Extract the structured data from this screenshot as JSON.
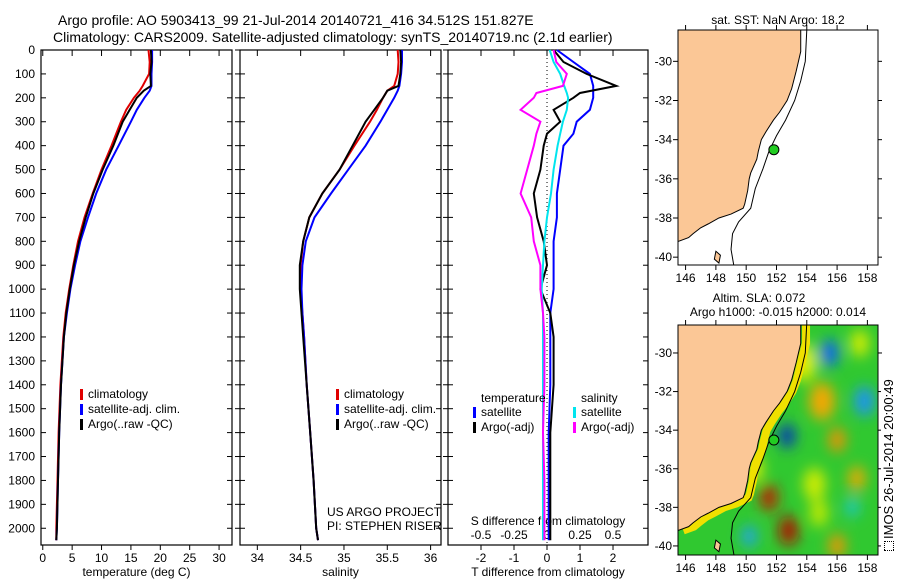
{
  "header": {
    "line1": "Argo profile: AO 5903413_99 21-Jul-2014 20140721_416 34.512S 151.827E",
    "line2": "Climatology: CARS2009. Satellite-adjusted climatology: synTS_20140719.nc (2.1d earlier)"
  },
  "chart_data": [
    {
      "type": "line",
      "id": "temperature",
      "xlabel": "temperature (deg C)",
      "ylabel": "",
      "xlim": [
        -0.3,
        32.2
      ],
      "ylim": [
        0,
        2070
      ],
      "xticks": [
        0,
        5,
        10,
        15,
        20,
        25,
        30
      ],
      "yticks": [
        0,
        100,
        200,
        300,
        400,
        500,
        600,
        700,
        800,
        900,
        1000,
        1100,
        1200,
        1300,
        1400,
        1500,
        1600,
        1700,
        1800,
        1900,
        2000
      ],
      "depth": [
        0,
        50,
        100,
        150,
        170,
        200,
        250,
        300,
        400,
        500,
        600,
        700,
        800,
        900,
        1000,
        1100,
        1200,
        1400,
        1600,
        1800,
        2000,
        2050
      ],
      "legend": [
        "climatology",
        "satellite-adj. clim.",
        "Argo(..raw -QC)"
      ],
      "series": [
        {
          "name": "climatology",
          "color": "#e00000",
          "values": [
            18.0,
            18.2,
            18.1,
            17.0,
            16.5,
            15.5,
            14.2,
            13.3,
            11.7,
            10.0,
            8.5,
            7.1,
            6.0,
            5.2,
            4.5,
            3.9,
            3.5,
            3.0,
            2.7,
            2.5,
            2.3,
            2.3
          ]
        },
        {
          "name": "satellite-adj. clim.",
          "color": "#0000ff",
          "values": [
            18.6,
            18.6,
            18.5,
            18.5,
            18.2,
            17.3,
            16.0,
            15.0,
            12.9,
            10.8,
            9.1,
            7.7,
            6.4,
            5.5,
            4.7,
            4.1,
            3.6,
            3.1,
            2.8,
            2.6,
            2.4,
            2.3
          ]
        },
        {
          "name": "Argo(..raw -QC)",
          "color": "#000000",
          "values": [
            18.4,
            18.5,
            18.3,
            18.4,
            17.2,
            16.0,
            14.8,
            13.6,
            12.0,
            10.2,
            8.6,
            7.3,
            6.2,
            5.3,
            4.6,
            4.0,
            3.6,
            3.1,
            2.8,
            2.6,
            2.4,
            2.3
          ]
        }
      ]
    },
    {
      "type": "line",
      "id": "salinity",
      "xlabel": "salinity",
      "xlim": [
        33.8,
        36.12
      ],
      "ylim": [
        0,
        2070
      ],
      "xticks": [
        34,
        34.5,
        35,
        35.5,
        36
      ],
      "depth": [
        0,
        50,
        100,
        150,
        170,
        200,
        250,
        300,
        400,
        500,
        600,
        700,
        800,
        900,
        1000,
        1100,
        1200,
        1400,
        1600,
        1800,
        2000,
        2050
      ],
      "legend": [
        "climatology",
        "satellite-adj. clim.",
        "Argo(..raw -QC)"
      ],
      "annotations": [
        "US ARGO PROJECT",
        "PI: STEPHEN RISER"
      ],
      "series": [
        {
          "name": "climatology",
          "color": "#e00000",
          "values": [
            35.62,
            35.63,
            35.62,
            35.58,
            35.5,
            35.45,
            35.38,
            35.3,
            35.12,
            34.95,
            34.75,
            34.6,
            34.53,
            34.5,
            34.5,
            34.52,
            34.54,
            34.57,
            34.61,
            34.65,
            34.68,
            34.7
          ]
        },
        {
          "name": "satellite-adj. clim.",
          "color": "#0000ff",
          "values": [
            35.67,
            35.67,
            35.66,
            35.64,
            35.62,
            35.58,
            35.5,
            35.42,
            35.25,
            35.05,
            34.85,
            34.66,
            34.56,
            34.52,
            34.51,
            34.52,
            34.54,
            34.57,
            34.61,
            34.65,
            34.68,
            34.7
          ]
        },
        {
          "name": "Argo(..raw -QC)",
          "color": "#000000",
          "values": [
            35.65,
            35.66,
            35.65,
            35.63,
            35.5,
            35.45,
            35.35,
            35.25,
            35.1,
            34.95,
            34.75,
            34.6,
            34.53,
            34.49,
            34.49,
            34.51,
            34.53,
            34.57,
            34.61,
            34.65,
            34.68,
            34.7
          ]
        }
      ]
    },
    {
      "type": "line",
      "id": "difference",
      "xlabel": "T difference from climatology",
      "x2label": "S difference from climatology",
      "xlim": [
        -3,
        3.06
      ],
      "x2lim": [
        -0.75,
        0.765
      ],
      "ylim": [
        0,
        2070
      ],
      "xticks": [
        -2,
        -1,
        0,
        1,
        2
      ],
      "x2ticks": [
        "-0.5",
        "-0.25",
        "0",
        "0.25",
        "0.5"
      ],
      "x2tickvals": [
        -0.5,
        -0.25,
        0,
        0.25,
        0.5
      ],
      "depth": [
        0,
        50,
        100,
        150,
        180,
        200,
        250,
        300,
        350,
        400,
        500,
        600,
        700,
        800,
        900,
        1000,
        1100,
        1200,
        1400,
        1600,
        1800,
        2000,
        2050
      ],
      "legend_headers": [
        "temperature",
        "salinity"
      ],
      "legend": [
        "satellite",
        "Argo(-adj)",
        "satellite",
        "Argo(-adj)"
      ],
      "series": [
        {
          "name": "T satellite",
          "axis": "T",
          "color": "#0000ff",
          "values": [
            0.3,
            0.8,
            1.3,
            1.4,
            1.4,
            1.4,
            1.3,
            0.9,
            0.8,
            0.5,
            0.4,
            0.3,
            0.3,
            0.2,
            0.2,
            0.2,
            0.1,
            0.1,
            0.1,
            0.05,
            0.05,
            0.05,
            0.05
          ]
        },
        {
          "name": "T Argo(-adj)",
          "axis": "T",
          "color": "#000000",
          "values": [
            0.2,
            0.5,
            1.2,
            2.1,
            1.0,
            0.8,
            0.2,
            0.4,
            0.0,
            -0.1,
            -0.2,
            -0.4,
            -0.3,
            -0.1,
            0.0,
            -0.2,
            0.1,
            0.2,
            0.2,
            0.1,
            0.1,
            0.1,
            0.1
          ]
        },
        {
          "name": "S satellite",
          "axis": "S",
          "color": "#00e5ee",
          "values": [
            0.02,
            0.05,
            0.1,
            0.13,
            0.15,
            0.16,
            0.15,
            0.12,
            0.1,
            0.08,
            0.05,
            0.03,
            0.0,
            -0.02,
            -0.03,
            -0.04,
            -0.03,
            -0.03,
            -0.03,
            -0.03,
            -0.03,
            -0.03,
            -0.03
          ]
        },
        {
          "name": "S Argo(-adj)",
          "axis": "S",
          "color": "#ff00ff",
          "values": [
            0.05,
            0.07,
            0.15,
            0.12,
            -0.08,
            -0.1,
            -0.2,
            -0.05,
            -0.08,
            -0.1,
            -0.15,
            -0.2,
            -0.12,
            -0.1,
            -0.05,
            -0.05,
            -0.03,
            -0.02,
            -0.02,
            -0.03,
            -0.02,
            -0.02,
            -0.02
          ]
        }
      ]
    },
    {
      "type": "map",
      "id": "sst-map",
      "title": "sat. SST: NaN Argo: 18.2",
      "xlim": [
        145.5,
        158.7
      ],
      "ylim": [
        -40.4,
        -28.4
      ],
      "xticks": [
        146,
        148,
        150,
        152,
        154,
        156,
        158
      ],
      "yticks": [
        -30,
        -32,
        -34,
        -36,
        -38,
        -40
      ],
      "argo_point": {
        "lon": 151.827,
        "lat": -34.512
      }
    },
    {
      "type": "map",
      "id": "sla-map",
      "title": "Altim. SLA: 0.072",
      "subtitle": "Argo h1000: -0.015 h2000: 0.014",
      "xlim": [
        145.5,
        158.7
      ],
      "ylim": [
        -40.47,
        -28.55
      ],
      "xticks": [
        146,
        148,
        150,
        152,
        154,
        156,
        158
      ],
      "yticks": [
        -30,
        -32,
        -34,
        -36,
        -38,
        -40
      ],
      "argo_point": {
        "lon": 151.827,
        "lat": -34.512
      }
    }
  ],
  "footer": {
    "credit": "IMOS 26-Jul-2014 20:00:49"
  },
  "colors": {
    "land": "#fbc796",
    "argo_point": "#22cc22"
  }
}
